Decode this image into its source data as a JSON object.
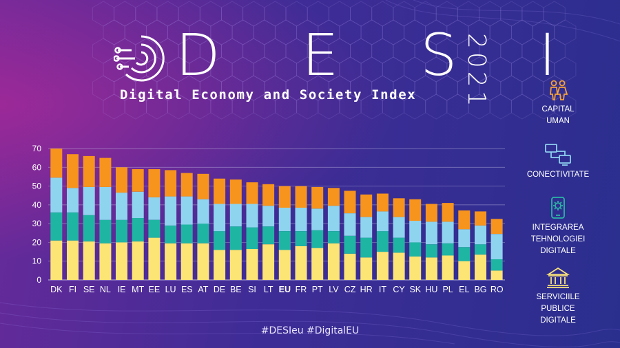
{
  "header": {
    "title": "D E S I",
    "year": "2021",
    "subtitle": "Digital Economy and Society Index"
  },
  "footer": {
    "hashtags": "#DESIeu  #DigitalEU"
  },
  "legend": [
    {
      "label": "CAPITAL\nUMAN",
      "icon": "people-icon",
      "color": "#f5a13a"
    },
    {
      "label": "CONECTIVITATE",
      "icon": "network-icon",
      "color": "#8ed1f0"
    },
    {
      "label": "INTEGRAREA\nTEHNOLOGIEI\nDIGITALE",
      "icon": "phone-gear-icon",
      "color": "#2bb5a4"
    },
    {
      "label": "SERVICIILE\nPUBLICE\nDIGITALE",
      "icon": "government-building-icon",
      "color": "#f9e27a"
    }
  ],
  "colors": {
    "capital_uman": "#f7941d",
    "conectivitate": "#8fd4ee",
    "integrare": "#1fb5a3",
    "servicii": "#fce475",
    "gridline": "#c9c6e8"
  },
  "chart_data": {
    "type": "bar",
    "stacked": true,
    "categories": [
      "DK",
      "FI",
      "SE",
      "NL",
      "IE",
      "MT",
      "EE",
      "LU",
      "ES",
      "AT",
      "DE",
      "BE",
      "SI",
      "LT",
      "EU",
      "FR",
      "PT",
      "LV",
      "CZ",
      "HR",
      "IT",
      "CY",
      "SK",
      "HU",
      "PL",
      "EL",
      "BG",
      "RO"
    ],
    "highlight_category": "EU",
    "ylim": [
      0,
      70
    ],
    "yticks": [
      0,
      10,
      20,
      30,
      40,
      50,
      60,
      70
    ],
    "grid": true,
    "series": [
      {
        "name": "SERVICIILE PUBLICE DIGITALE",
        "values": [
          21,
          21,
          20.5,
          19.5,
          20,
          20.5,
          22.5,
          19.5,
          19.5,
          19.5,
          16,
          16,
          16.5,
          19,
          16,
          18,
          17,
          19.5,
          14,
          12,
          15,
          14.5,
          12.5,
          12,
          13,
          10,
          13.5,
          5
        ]
      },
      {
        "name": "INTEGRAREA TEHNOLOGIEI DIGITALE",
        "values": [
          15,
          15,
          14,
          12.5,
          12,
          12.5,
          9.5,
          9.5,
          10,
          10.5,
          10,
          12.5,
          11.5,
          9.5,
          10,
          8,
          9.5,
          6.5,
          9.5,
          10.5,
          11,
          8,
          7.5,
          7,
          6.5,
          7.5,
          5.5,
          6
        ]
      },
      {
        "name": "CONECTIVITATE",
        "values": [
          18.5,
          13,
          15,
          17.5,
          14.5,
          14,
          12,
          15.5,
          15,
          13,
          14.5,
          12,
          12.5,
          11,
          12.5,
          12.5,
          11.5,
          13.5,
          12,
          11,
          10.5,
          11,
          11.5,
          12,
          11.5,
          9.5,
          10,
          13.5
        ]
      },
      {
        "name": "CAPITAL UMAN",
        "values": [
          15.5,
          18,
          16.5,
          15.5,
          13.5,
          12,
          15,
          14,
          12.5,
          13.5,
          13.5,
          13,
          11.5,
          11.5,
          11.5,
          11.5,
          11.5,
          9.5,
          12,
          12,
          9.5,
          10,
          11.5,
          9.5,
          10,
          10,
          7.5,
          8
        ]
      }
    ]
  }
}
